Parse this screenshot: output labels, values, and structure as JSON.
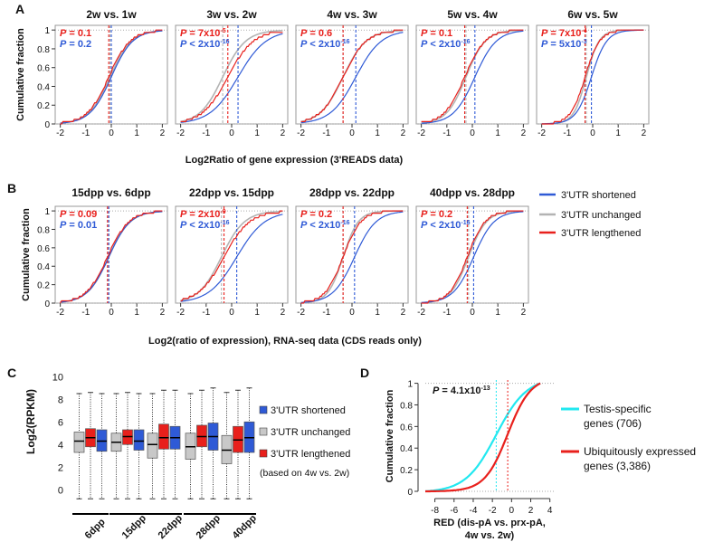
{
  "colors": {
    "shortened": "#2f5ad6",
    "unchanged": "#b3b3b3",
    "lengthened": "#e8201c",
    "testis": "#22e8f0",
    "ubiquitous": "#e8201c",
    "frame": "#999999",
    "text": "#111111"
  },
  "legend_ab": [
    {
      "key": "shortened",
      "label": "3'UTR shortened"
    },
    {
      "key": "unchanged",
      "label": "3'UTR unchanged"
    },
    {
      "key": "lengthened",
      "label": "3'UTR lengthened"
    }
  ],
  "chart_data": [
    {
      "id": "A",
      "type": "line",
      "letter": "A",
      "ylabel": "Cumulative fraction",
      "xlabel": "Log2Ratio of gene expression (3'READS data)",
      "xlim": [
        -2.2,
        2.2
      ],
      "ylim": [
        0,
        1.05
      ],
      "xticks": [
        "-2",
        "-1",
        "0",
        "1",
        "2"
      ],
      "yticks": [
        "0",
        "0.2",
        "0.4",
        "0.6",
        "0.8",
        "1"
      ],
      "panels": [
        {
          "title": "2w vs. 1w",
          "p_red": [
            "P",
            " = 0.1"
          ],
          "p_blue": [
            "P",
            " = 0.2"
          ],
          "medians": {
            "shortened": 0.0,
            "unchanged": -0.05,
            "lengthened": -0.1
          },
          "spreads": {
            "shortened": 0.42,
            "unchanged": 0.42,
            "lengthened": 0.42
          }
        },
        {
          "title": "3w vs. 2w",
          "p_red": [
            "P",
            " = 7x10",
            "-5"
          ],
          "p_blue": [
            "P",
            " < 2x10",
            "-16"
          ],
          "medians": {
            "shortened": 0.25,
            "unchanged": -0.35,
            "lengthened": -0.15
          },
          "spreads": {
            "shortened": 0.55,
            "unchanged": 0.45,
            "lengthened": 0.5
          }
        },
        {
          "title": "4w vs. 3w",
          "p_red": [
            "P",
            " = 0.6"
          ],
          "p_blue": [
            "P",
            " < 2x10",
            "-16"
          ],
          "medians": {
            "shortened": 0.15,
            "unchanged": -0.35,
            "lengthened": -0.35
          },
          "spreads": {
            "shortened": 0.5,
            "unchanged": 0.45,
            "lengthened": 0.45
          }
        },
        {
          "title": "5w vs. 4w",
          "p_red": [
            "P",
            " = 0.1"
          ],
          "p_blue": [
            "P",
            " < 2x10",
            "-16"
          ],
          "medians": {
            "shortened": 0.1,
            "unchanged": -0.25,
            "lengthened": -0.3
          },
          "spreads": {
            "shortened": 0.42,
            "unchanged": 0.38,
            "lengthened": 0.4
          }
        },
        {
          "title": "6w vs. 5w",
          "p_red": [
            "P",
            " = 7x10",
            "-4"
          ],
          "p_blue": [
            "P",
            " = 5x10",
            "-3"
          ],
          "medians": {
            "shortened": -0.05,
            "unchanged": -0.25,
            "lengthened": -0.3
          },
          "spreads": {
            "shortened": 0.3,
            "unchanged": 0.25,
            "lengthened": 0.28
          }
        }
      ]
    },
    {
      "id": "B",
      "type": "line",
      "letter": "B",
      "ylabel": "Cumulative fraction",
      "xlabel": "Log2(ratio of expression), RNA-seq data (CDS reads only)",
      "xlim": [
        -2.2,
        2.2
      ],
      "ylim": [
        0,
        1.05
      ],
      "xticks": [
        "-2",
        "-1",
        "0",
        "1",
        "2"
      ],
      "yticks": [
        "0",
        "0.2",
        "0.4",
        "0.6",
        "0.8",
        "1"
      ],
      "panels": [
        {
          "title": "15dpp vs. 6dpp",
          "p_red": [
            "P",
            " = 0.09"
          ],
          "p_blue": [
            "P",
            " = 0.01"
          ],
          "medians": {
            "shortened": -0.1,
            "unchanged": -0.1,
            "lengthened": -0.15
          },
          "spreads": {
            "shortened": 0.42,
            "unchanged": 0.42,
            "lengthened": 0.42
          }
        },
        {
          "title": "22dpp vs. 15dpp",
          "p_red": [
            "P",
            " = 2x10",
            "-9"
          ],
          "p_blue": [
            "P",
            " < 2x10",
            "-16"
          ],
          "medians": {
            "shortened": 0.2,
            "unchanged": -0.4,
            "lengthened": -0.3
          },
          "spreads": {
            "shortened": 0.55,
            "unchanged": 0.45,
            "lengthened": 0.5
          }
        },
        {
          "title": "28dpp vs. 22dpp",
          "p_red": [
            "P",
            " = 0.2"
          ],
          "p_blue": [
            "P",
            " < 2x10",
            "-16"
          ],
          "medians": {
            "shortened": 0.1,
            "unchanged": -0.35,
            "lengthened": -0.35
          },
          "spreads": {
            "shortened": 0.42,
            "unchanged": 0.3,
            "lengthened": 0.35
          }
        },
        {
          "title": "40dpp vs. 28dpp",
          "p_red": [
            "P",
            " = 0.2"
          ],
          "p_blue": [
            "P",
            " < 2x10",
            "-16"
          ],
          "medians": {
            "shortened": 0.05,
            "unchanged": -0.15,
            "lengthened": -0.2
          },
          "spreads": {
            "shortened": 0.4,
            "unchanged": 0.35,
            "lengthened": 0.35
          }
        }
      ]
    },
    {
      "id": "C",
      "type": "box",
      "letter": "C",
      "ylabel": "Log2(RPKM)",
      "ylim": [
        -1.5,
        10.5
      ],
      "yticks": [
        0,
        2,
        4,
        6,
        8,
        10
      ],
      "categories": [
        "6dpp",
        "15dpp",
        "22dpp",
        "28dpp",
        "40dpp"
      ],
      "legend": [
        {
          "key": "shortened",
          "label": "3'UTR shortened"
        },
        {
          "key": "unchanged",
          "label": "3'UTR unchanged"
        },
        {
          "key": "lengthened",
          "label": "3'UTR lengthened"
        }
      ],
      "note": "(based on 4w vs. 2w)",
      "series_order": [
        "unchanged",
        "lengthened",
        "shortened"
      ],
      "boxes": {
        "unchanged": [
          {
            "min": -0.8,
            "q1": 3.3,
            "median": 4.3,
            "q3": 5.1,
            "max": 8.5
          },
          {
            "min": -0.8,
            "q1": 3.4,
            "median": 4.2,
            "q3": 5.0,
            "max": 8.5
          },
          {
            "min": -0.8,
            "q1": 2.8,
            "median": 4.0,
            "q3": 5.0,
            "max": 8.5
          },
          {
            "min": -0.8,
            "q1": 2.7,
            "median": 3.8,
            "q3": 5.0,
            "max": 8.5
          },
          {
            "min": -0.8,
            "q1": 2.3,
            "median": 3.5,
            "q3": 4.8,
            "max": 8.6
          }
        ],
        "lengthened": [
          {
            "min": -0.8,
            "q1": 3.8,
            "median": 4.6,
            "q3": 5.4,
            "max": 8.6
          },
          {
            "min": -0.8,
            "q1": 4.0,
            "median": 4.7,
            "q3": 5.3,
            "max": 8.6
          },
          {
            "min": -0.8,
            "q1": 3.6,
            "median": 4.6,
            "q3": 5.8,
            "max": 8.8
          },
          {
            "min": -0.8,
            "q1": 3.8,
            "median": 4.7,
            "q3": 5.7,
            "max": 8.8
          },
          {
            "min": -0.8,
            "q1": 3.3,
            "median": 4.4,
            "q3": 5.6,
            "max": 8.8
          }
        ],
        "shortened": [
          {
            "min": -0.8,
            "q1": 3.4,
            "median": 4.3,
            "q3": 5.3,
            "max": 8.5
          },
          {
            "min": -0.8,
            "q1": 3.5,
            "median": 4.3,
            "q3": 5.3,
            "max": 8.5
          },
          {
            "min": -0.8,
            "q1": 3.6,
            "median": 4.6,
            "q3": 5.6,
            "max": 8.8
          },
          {
            "min": -0.8,
            "q1": 3.5,
            "median": 4.7,
            "q3": 5.9,
            "max": 9.0
          },
          {
            "min": -0.8,
            "q1": 3.3,
            "median": 4.6,
            "q3": 6.0,
            "max": 9.0
          }
        ]
      }
    },
    {
      "id": "D",
      "type": "line",
      "letter": "D",
      "ylabel": "Cumulative fraction",
      "xlabel_lines": [
        "RED (dis-pA vs. prx-pA,",
        "4w vs. 2w)"
      ],
      "xlim": [
        -9,
        4.5
      ],
      "ylim": [
        0,
        1.03
      ],
      "xticks": [
        -8,
        -6,
        -4,
        -2,
        0,
        2,
        4
      ],
      "yticks": [
        "0",
        "0.2",
        "0.4",
        "0.6",
        "0.8",
        "1"
      ],
      "p_value": [
        "P",
        " = 4.1x10",
        "-13"
      ],
      "series": [
        {
          "key": "testis",
          "name": "Testis-specific genes (706)",
          "legend_lines": [
            "Testis-specific",
            "genes (706)"
          ],
          "median": -1.6,
          "spread": 1.6,
          "min": -9,
          "max": 3
        },
        {
          "key": "ubiquitous",
          "name": "Ubiquitously expressed genes (3,386)",
          "legend_lines": [
            "Ubiquitously expressed",
            "genes (3,386)"
          ],
          "median": -0.4,
          "spread": 1.2,
          "min": -9,
          "max": 3
        }
      ]
    }
  ]
}
